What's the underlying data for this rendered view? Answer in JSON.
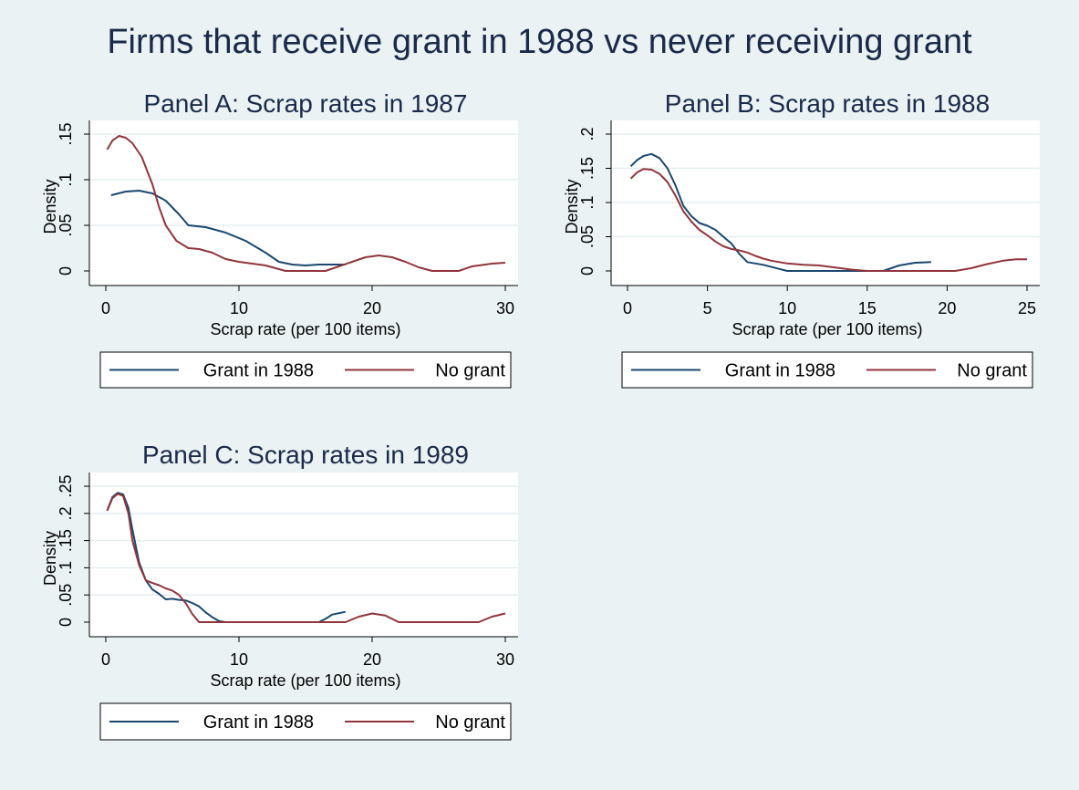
{
  "title": "Firms that receive grant in 1988 vs never receiving grant",
  "colors": {
    "background": "#eaf2f3",
    "plot_bg": "#ffffff",
    "grid": "#e6eef0",
    "grant": "#1a476f",
    "no_grant": "#90353b",
    "text": "#000000",
    "title": "#1a2a4a"
  },
  "chart_data": [
    {
      "type": "line",
      "title": "Panel A: Scrap rates in 1987",
      "xlabel": "Scrap rate (per 100 items)",
      "ylabel": "Density",
      "xlim": [
        0,
        30
      ],
      "ylim": [
        0,
        0.15
      ],
      "xticks": [
        0,
        10,
        20,
        30
      ],
      "yticks": [
        0,
        0.05,
        0.1,
        0.15
      ],
      "ytick_labels": [
        "0",
        ".05",
        ".1",
        ".15"
      ],
      "grid": true,
      "legend_position": "bottom",
      "series": [
        {
          "name": "Grant in 1988",
          "color": "#1a476f",
          "points": [
            [
              0.4,
              0.083
            ],
            [
              1.5,
              0.087
            ],
            [
              2.5,
              0.088
            ],
            [
              3.5,
              0.085
            ],
            [
              4.5,
              0.077
            ],
            [
              5.5,
              0.062
            ],
            [
              6.2,
              0.05
            ],
            [
              7.5,
              0.048
            ],
            [
              9,
              0.042
            ],
            [
              10.5,
              0.033
            ],
            [
              12,
              0.02
            ],
            [
              13,
              0.01
            ],
            [
              14,
              0.007
            ],
            [
              15,
              0.006
            ],
            [
              16,
              0.007
            ],
            [
              17,
              0.007
            ],
            [
              18,
              0.007
            ]
          ]
        },
        {
          "name": "No grant",
          "color": "#90353b",
          "points": [
            [
              0.1,
              0.133
            ],
            [
              0.5,
              0.143
            ],
            [
              1,
              0.148
            ],
            [
              1.5,
              0.146
            ],
            [
              2,
              0.14
            ],
            [
              2.7,
              0.125
            ],
            [
              3.5,
              0.095
            ],
            [
              4,
              0.07
            ],
            [
              4.5,
              0.05
            ],
            [
              5.3,
              0.033
            ],
            [
              6.2,
              0.025
            ],
            [
              7,
              0.024
            ],
            [
              8,
              0.02
            ],
            [
              9,
              0.013
            ],
            [
              10,
              0.01
            ],
            [
              11,
              0.008
            ],
            [
              12,
              0.006
            ],
            [
              13,
              0.002
            ],
            [
              13.5,
              0
            ],
            [
              16.5,
              0
            ],
            [
              17.5,
              0.005
            ],
            [
              18.5,
              0.01
            ],
            [
              19.5,
              0.015
            ],
            [
              20.5,
              0.017
            ],
            [
              21.5,
              0.015
            ],
            [
              22.5,
              0.01
            ],
            [
              23.5,
              0.004
            ],
            [
              24.5,
              0
            ],
            [
              26.5,
              0
            ],
            [
              27.5,
              0.005
            ],
            [
              29,
              0.008
            ],
            [
              30,
              0.009
            ]
          ]
        }
      ]
    },
    {
      "type": "line",
      "title": "Panel B: Scrap rates in 1988",
      "xlabel": "Scrap rate (per 100 items)",
      "ylabel": "Density",
      "xlim": [
        0,
        25
      ],
      "ylim": [
        0,
        0.2
      ],
      "xticks": [
        0,
        5,
        10,
        15,
        20,
        25
      ],
      "yticks": [
        0,
        0.05,
        0.1,
        0.15,
        0.2
      ],
      "ytick_labels": [
        "0",
        ".05",
        ".1",
        ".15",
        ".2"
      ],
      "grid": true,
      "legend_position": "bottom",
      "series": [
        {
          "name": "Grant in 1988",
          "color": "#1a476f",
          "points": [
            [
              0.2,
              0.153
            ],
            [
              0.6,
              0.162
            ],
            [
              1,
              0.168
            ],
            [
              1.5,
              0.171
            ],
            [
              2,
              0.165
            ],
            [
              2.5,
              0.15
            ],
            [
              3,
              0.125
            ],
            [
              3.5,
              0.095
            ],
            [
              4,
              0.08
            ],
            [
              4.5,
              0.07
            ],
            [
              5,
              0.066
            ],
            [
              5.5,
              0.06
            ],
            [
              6,
              0.05
            ],
            [
              6.5,
              0.04
            ],
            [
              7,
              0.025
            ],
            [
              7.5,
              0.013
            ],
            [
              8.5,
              0.009
            ],
            [
              9.5,
              0.003
            ],
            [
              10,
              0
            ],
            [
              16,
              0
            ],
            [
              17,
              0.008
            ],
            [
              18,
              0.012
            ],
            [
              19,
              0.013
            ]
          ]
        },
        {
          "name": "No grant",
          "color": "#90353b",
          "points": [
            [
              0.2,
              0.135
            ],
            [
              0.6,
              0.144
            ],
            [
              1,
              0.149
            ],
            [
              1.5,
              0.148
            ],
            [
              2,
              0.142
            ],
            [
              2.5,
              0.13
            ],
            [
              3,
              0.11
            ],
            [
              3.5,
              0.087
            ],
            [
              4,
              0.072
            ],
            [
              4.5,
              0.06
            ],
            [
              5,
              0.052
            ],
            [
              5.5,
              0.043
            ],
            [
              6,
              0.036
            ],
            [
              6.5,
              0.032
            ],
            [
              7,
              0.03
            ],
            [
              7.5,
              0.027
            ],
            [
              8,
              0.022
            ],
            [
              8.5,
              0.018
            ],
            [
              9,
              0.015
            ],
            [
              10,
              0.011
            ],
            [
              11,
              0.009
            ],
            [
              12,
              0.008
            ],
            [
              13,
              0.005
            ],
            [
              14,
              0.002
            ],
            [
              15,
              0
            ],
            [
              20.5,
              0
            ],
            [
              21.5,
              0.004
            ],
            [
              22.5,
              0.01
            ],
            [
              23.5,
              0.015
            ],
            [
              24.3,
              0.017
            ],
            [
              25,
              0.017
            ]
          ]
        }
      ]
    },
    {
      "type": "line",
      "title": "Panel C: Scrap rates in 1989",
      "xlabel": "Scrap rate (per 100 items)",
      "ylabel": "Density",
      "xlim": [
        0,
        30
      ],
      "ylim": [
        0,
        0.25
      ],
      "xticks": [
        0,
        10,
        20,
        30
      ],
      "yticks": [
        0,
        0.05,
        0.1,
        0.15,
        0.2,
        0.25
      ],
      "ytick_labels": [
        "0",
        ".05",
        ".1",
        ".15",
        ".2",
        ".25"
      ],
      "grid": true,
      "legend_position": "bottom",
      "series": [
        {
          "name": "Grant in 1988",
          "color": "#1a476f",
          "points": [
            [
              0.1,
              0.205
            ],
            [
              0.5,
              0.23
            ],
            [
              0.9,
              0.238
            ],
            [
              1.3,
              0.235
            ],
            [
              1.7,
              0.21
            ],
            [
              2,
              0.17
            ],
            [
              2.5,
              0.11
            ],
            [
              3,
              0.077
            ],
            [
              3.5,
              0.06
            ],
            [
              4,
              0.052
            ],
            [
              4.5,
              0.042
            ],
            [
              5,
              0.043
            ],
            [
              5.5,
              0.041
            ],
            [
              6,
              0.04
            ],
            [
              6.5,
              0.035
            ],
            [
              7,
              0.029
            ],
            [
              7.5,
              0.018
            ],
            [
              8,
              0.009
            ],
            [
              8.5,
              0.002
            ],
            [
              9,
              0
            ],
            [
              16,
              0
            ],
            [
              16.5,
              0.006
            ],
            [
              17,
              0.014
            ],
            [
              18,
              0.019
            ]
          ]
        },
        {
          "name": "No grant",
          "color": "#90353b",
          "points": [
            [
              0.1,
              0.205
            ],
            [
              0.5,
              0.228
            ],
            [
              0.9,
              0.236
            ],
            [
              1.3,
              0.232
            ],
            [
              1.7,
              0.2
            ],
            [
              2,
              0.15
            ],
            [
              2.5,
              0.105
            ],
            [
              3,
              0.077
            ],
            [
              3.5,
              0.072
            ],
            [
              4,
              0.068
            ],
            [
              4.5,
              0.062
            ],
            [
              5,
              0.058
            ],
            [
              5.5,
              0.05
            ],
            [
              6,
              0.035
            ],
            [
              6.5,
              0.015
            ],
            [
              7,
              0
            ],
            [
              18,
              0
            ],
            [
              19,
              0.01
            ],
            [
              20,
              0.016
            ],
            [
              21,
              0.012
            ],
            [
              22,
              0
            ],
            [
              28,
              0
            ],
            [
              29,
              0.01
            ],
            [
              30,
              0.016
            ]
          ]
        }
      ]
    }
  ]
}
